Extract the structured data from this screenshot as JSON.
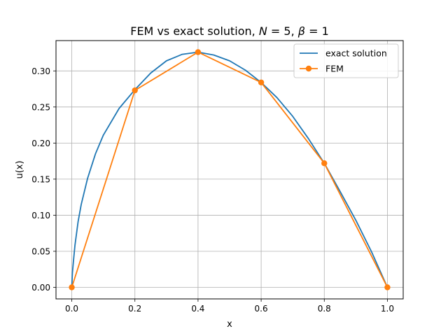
{
  "chart_data": {
    "type": "line",
    "title": "FEM vs exact solution, N = 5, β = 1",
    "title_parts": {
      "prefix": "FEM vs exact solution, ",
      "n_sym": "N",
      "n_val": "5",
      "beta_sym": "β",
      "beta_val": "1"
    },
    "xlabel": "x",
    "ylabel": "u(x)",
    "xlim": [
      -0.05,
      1.05
    ],
    "ylim": [
      -0.016,
      0.342
    ],
    "xticks": [
      0.0,
      0.2,
      0.4,
      0.6,
      0.8,
      1.0
    ],
    "xtick_labels": [
      "0.0",
      "0.2",
      "0.4",
      "0.6",
      "0.8",
      "1.0"
    ],
    "yticks": [
      0.0,
      0.05,
      0.1,
      0.15,
      0.2,
      0.25,
      0.3
    ],
    "ytick_labels": [
      "0.00",
      "0.05",
      "0.10",
      "0.15",
      "0.20",
      "0.25",
      "0.30"
    ],
    "grid": true,
    "legend": "top-right",
    "series": [
      {
        "name": "exact solution",
        "color": "#1f77b4",
        "marker": "none",
        "x": [
          0.0,
          0.002,
          0.005,
          0.01,
          0.02,
          0.03,
          0.05,
          0.075,
          0.1,
          0.15,
          0.2,
          0.25,
          0.3,
          0.35,
          0.4,
          0.45,
          0.5,
          0.55,
          0.6,
          0.65,
          0.7,
          0.75,
          0.8,
          0.85,
          0.9,
          0.95,
          1.0
        ],
        "y": [
          0.0,
          0.02,
          0.035,
          0.058,
          0.091,
          0.115,
          0.151,
          0.185,
          0.211,
          0.248,
          0.274,
          0.297,
          0.314,
          0.323,
          0.326,
          0.322,
          0.314,
          0.301,
          0.284,
          0.263,
          0.237,
          0.206,
          0.172,
          0.133,
          0.093,
          0.049,
          0.0
        ]
      },
      {
        "name": "FEM",
        "color": "#ff7f0e",
        "marker": "circle",
        "x": [
          0.0,
          0.2,
          0.4,
          0.6,
          0.8,
          1.0
        ],
        "y": [
          0.0,
          0.273,
          0.326,
          0.284,
          0.172,
          0.0
        ]
      }
    ]
  }
}
